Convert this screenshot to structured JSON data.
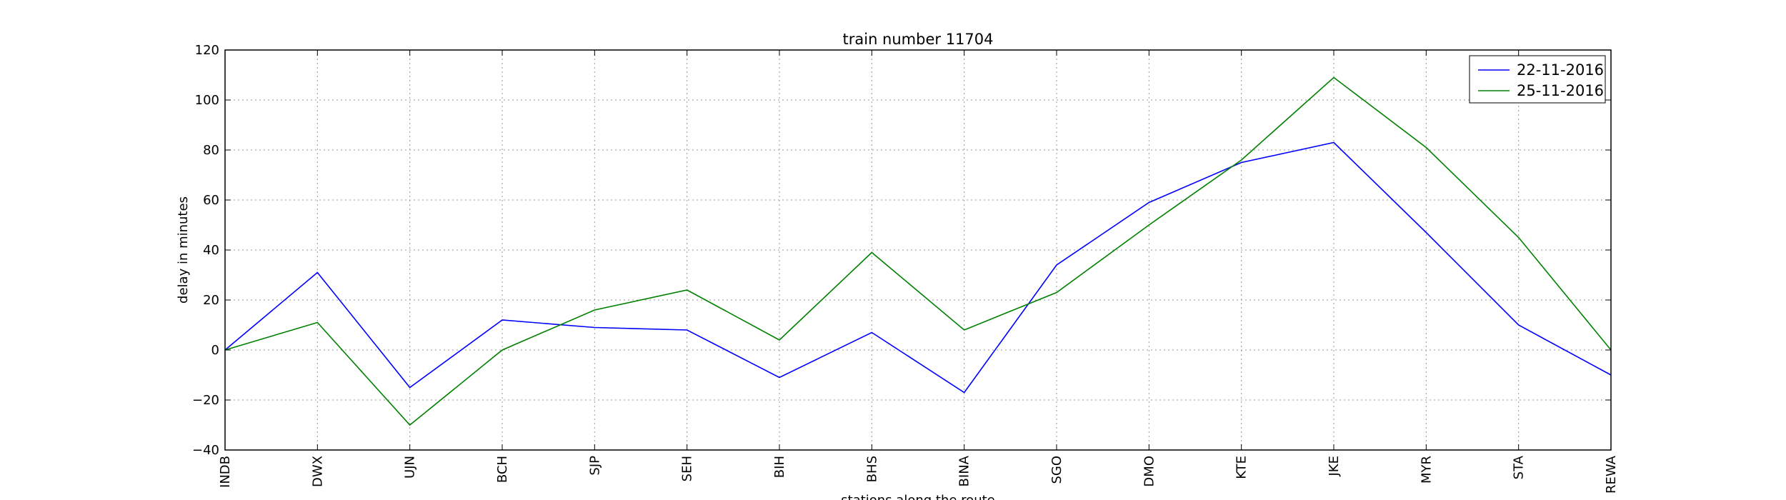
{
  "chart_data": {
    "type": "line",
    "title": "train number 11704",
    "xlabel": "stations along the route",
    "ylabel": "delay in minutes",
    "categories": [
      "INDB",
      "DWX",
      "UJN",
      "BCH",
      "SJP",
      "SEH",
      "BIH",
      "BHS",
      "BINA",
      "SGO",
      "DMO",
      "KTE",
      "JKE",
      "MYR",
      "STA",
      "REWA"
    ],
    "ylim": [
      -40,
      120
    ],
    "yticks": [
      -40,
      -20,
      0,
      20,
      40,
      60,
      80,
      100,
      120
    ],
    "ytick_labels": [
      "−40",
      "−20",
      "0",
      "20",
      "40",
      "60",
      "80",
      "100",
      "120"
    ],
    "grid": true,
    "legend_position": "top-right",
    "series": [
      {
        "name": "22-11-2016",
        "color": "#0000ff",
        "values": [
          0,
          31,
          -15,
          12,
          9,
          8,
          -11,
          7,
          -17,
          34,
          59,
          75,
          83,
          47,
          10,
          -10
        ]
      },
      {
        "name": "25-11-2016",
        "color": "#008000",
        "values": [
          0,
          11,
          -30,
          0,
          16,
          24,
          4,
          39,
          8,
          23,
          50,
          76,
          109,
          81,
          45,
          0
        ]
      }
    ]
  }
}
